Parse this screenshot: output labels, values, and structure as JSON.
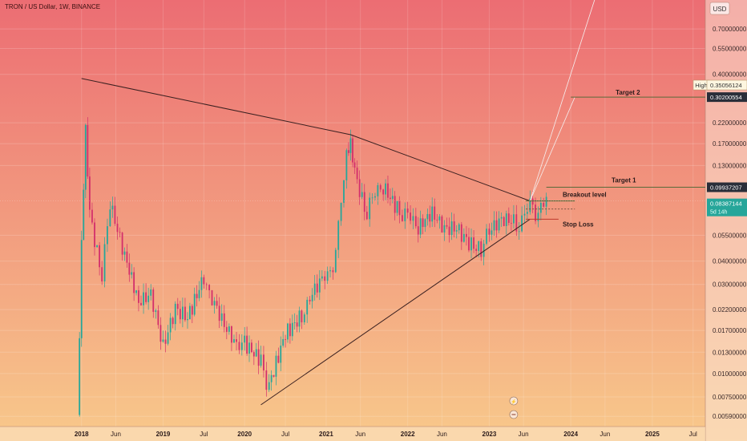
{
  "header": {
    "title": "TRON / US Dollar, 1W, BINANCE"
  },
  "axis": {
    "currency": "USD",
    "y_ticks": [
      "0.70000000",
      "0.55000000",
      "0.40000000",
      "0.22000000",
      "0.17000000",
      "0.13000000",
      "0.05500000",
      "0.04000000",
      "0.03000000",
      "0.02200000",
      "0.01700000",
      "0.01300000",
      "0.01000000",
      "0.00750000",
      "0.00590000"
    ],
    "y_tick_values": [
      0.7,
      0.55,
      0.4,
      0.22,
      0.17,
      0.13,
      0.055,
      0.04,
      0.03,
      0.022,
      0.017,
      0.013,
      0.01,
      0.0075,
      0.0059
    ],
    "x_ticks": [
      "2018",
      "Jun",
      "2019",
      "Jul",
      "2020",
      "Jul",
      "2021",
      "Jun",
      "2022",
      "Jun",
      "2023",
      "Jun",
      "2024",
      "Jun",
      "2025",
      "Jul"
    ],
    "x_tick_values": [
      2018.0,
      2018.42,
      2019.0,
      2019.5,
      2020.0,
      2020.5,
      2021.0,
      2021.42,
      2022.0,
      2022.42,
      2023.0,
      2023.42,
      2024.0,
      2024.42,
      2025.0,
      2025.5
    ]
  },
  "price_tags": {
    "high_label": "High",
    "high_value": "0.35056124",
    "target2_value": "0.30200554",
    "target1_value": "0.09937207",
    "current_value": "0.08387144",
    "countdown": "5d 14h"
  },
  "annotations": {
    "target2": "Target 2",
    "target1": "Target 1",
    "breakout": "Breakout level",
    "stoploss": "Stop Loss"
  },
  "colors": {
    "up": "#26a69a",
    "down": "#d32f6b",
    "line": "#3a2020",
    "target_line": "#5a6a3a",
    "stop_line": "#c0392b",
    "bg_top": "#ec6d73",
    "bg_bottom": "#f8c98b"
  },
  "chart_data": {
    "type": "line",
    "scale": "log",
    "ylim": [
      0.0052,
      1.0
    ],
    "xlim": [
      2017.0,
      2025.65
    ],
    "series": [
      {
        "x": [
          2017.95,
          2018.0,
          2018.05,
          2018.1,
          2018.25,
          2018.35,
          2018.5,
          2018.7,
          2018.85,
          2019.0,
          2019.15,
          2019.3,
          2019.5,
          2019.6,
          2019.75,
          2019.9,
          2020.0,
          2020.2,
          2020.3,
          2020.5,
          2020.7,
          2020.8,
          2020.95,
          2021.05,
          2021.15,
          2021.25,
          2021.3,
          2021.35,
          2021.5,
          2021.6,
          2021.7,
          2021.9,
          2022.0,
          2022.1,
          2022.3,
          2022.45,
          2022.6,
          2022.75,
          2022.9,
          2023.0,
          2023.15,
          2023.3,
          2023.4,
          2023.5,
          2023.6,
          2023.7
        ],
        "y": [
          0.006,
          0.045,
          0.2,
          0.08,
          0.035,
          0.075,
          0.045,
          0.022,
          0.025,
          0.014,
          0.024,
          0.022,
          0.035,
          0.025,
          0.017,
          0.013,
          0.016,
          0.012,
          0.009,
          0.018,
          0.022,
          0.025,
          0.03,
          0.035,
          0.06,
          0.14,
          0.16,
          0.13,
          0.07,
          0.09,
          0.11,
          0.08,
          0.07,
          0.058,
          0.067,
          0.058,
          0.063,
          0.055,
          0.05,
          0.053,
          0.063,
          0.066,
          0.067,
          0.076,
          0.078,
          0.084
        ]
      }
    ],
    "lines": {
      "upper_trendline": [
        [
          2018.0,
          0.38
        ],
        [
          2021.3,
          0.19
        ],
        [
          2023.5,
          0.084
        ]
      ],
      "lower_trendline": [
        [
          2020.2,
          0.0068
        ],
        [
          2023.5,
          0.067
        ]
      ],
      "projection_to_target2": [
        [
          2023.5,
          0.084
        ],
        [
          2024.05,
          0.302
        ]
      ],
      "projection_up": [
        [
          2023.5,
          0.084
        ],
        [
          2024.35,
          1.2
        ]
      ],
      "target2_level": 0.302,
      "target1_level": 0.0994,
      "breakout_level": 0.084,
      "stoploss_level": 0.067
    }
  }
}
